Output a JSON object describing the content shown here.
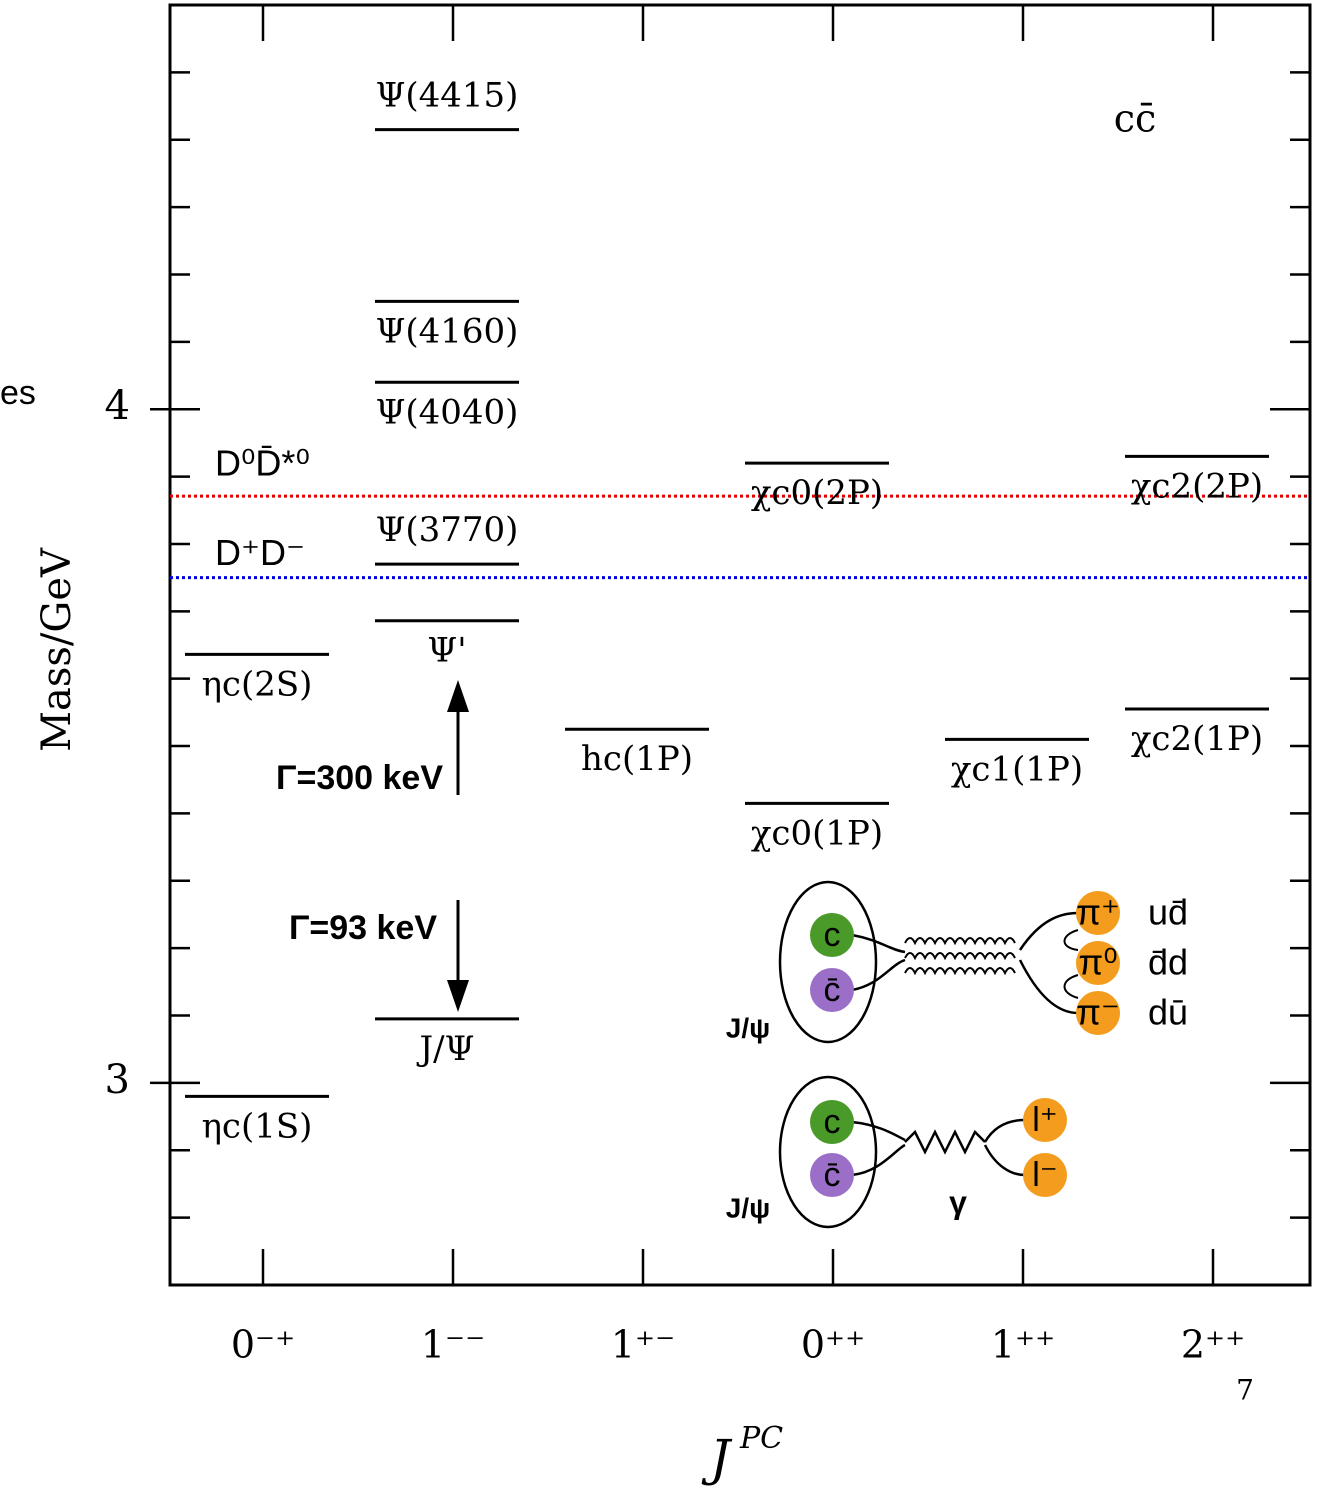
{
  "chart_data": {
    "type": "level",
    "ylabel": "Mass/GeV",
    "xlabel_base": "J",
    "xlabel_sup": "PC",
    "categories": [
      "0⁻⁺",
      "1⁻⁻",
      "1⁺⁻",
      "0⁺⁺",
      "1⁺⁺",
      "2⁺⁺"
    ],
    "ylim": [
      2.7,
      4.6
    ],
    "yticks": [
      3,
      4
    ],
    "yminor": [
      2.8,
      2.9,
      3.1,
      3.2,
      3.3,
      3.4,
      3.5,
      3.6,
      3.7,
      3.8,
      3.9,
      4.1,
      4.2,
      4.3,
      4.4,
      4.5
    ],
    "levels": [
      {
        "label": "ηc(1S)",
        "category": "0⁻⁺",
        "value": 2.98
      },
      {
        "label": "J/Ψ",
        "category": "1⁻⁻",
        "value": 3.095
      },
      {
        "label": "ηc(2S)",
        "category": "0⁻⁺",
        "value": 3.636
      },
      {
        "label": "Ψ'",
        "category": "1⁻⁻",
        "value": 3.686
      },
      {
        "label": "Ψ(3770)",
        "category": "1⁻⁻",
        "value": 3.77
      },
      {
        "label": "Ψ(4040)",
        "category": "1⁻⁻",
        "value": 4.04
      },
      {
        "label": "Ψ(4160)",
        "category": "1⁻⁻",
        "value": 4.16
      },
      {
        "label": "Ψ(4415)",
        "category": "1⁻⁻",
        "value": 4.415
      },
      {
        "label": "hc(1P)",
        "category": "1⁺⁻",
        "value": 3.525
      },
      {
        "label": "χc0(1P)",
        "category": "0⁺⁺",
        "value": 3.415
      },
      {
        "label": "χc0(2P)",
        "category": "0⁺⁺",
        "value": 3.92
      },
      {
        "label": "χc1(1P)",
        "category": "1⁺⁺",
        "value": 3.51
      },
      {
        "label": "χc2(1P)",
        "category": "2⁺⁺",
        "value": 3.555
      },
      {
        "label": "χc2(2P)",
        "category": "2⁺⁺",
        "value": 3.93
      }
    ],
    "thresholds": [
      {
        "label": "D⁰D̄*⁰",
        "value": 3.871,
        "color": "#e00000"
      },
      {
        "label": "D⁺D⁻",
        "value": 3.75,
        "color": "#0000dd"
      }
    ],
    "annotations": {
      "quark_content": "cc̄",
      "width_psi2s": "Γ=300 keV",
      "width_jpsi": "Γ=93 keV",
      "page_number": "7",
      "cut_text": "es"
    },
    "diagrams": {
      "hadronic": {
        "meson": "J/ψ",
        "quark": "c",
        "antiquark": "c̄",
        "pions": [
          "π⁺",
          "π⁰",
          "π⁻"
        ],
        "content": [
          "ud̄",
          "d̄d",
          "dū"
        ]
      },
      "leptonic": {
        "meson": "J/ψ",
        "quark": "c",
        "antiquark": "c̄",
        "leptons": [
          "l⁺",
          "l⁻"
        ],
        "boson": "γ"
      }
    }
  }
}
